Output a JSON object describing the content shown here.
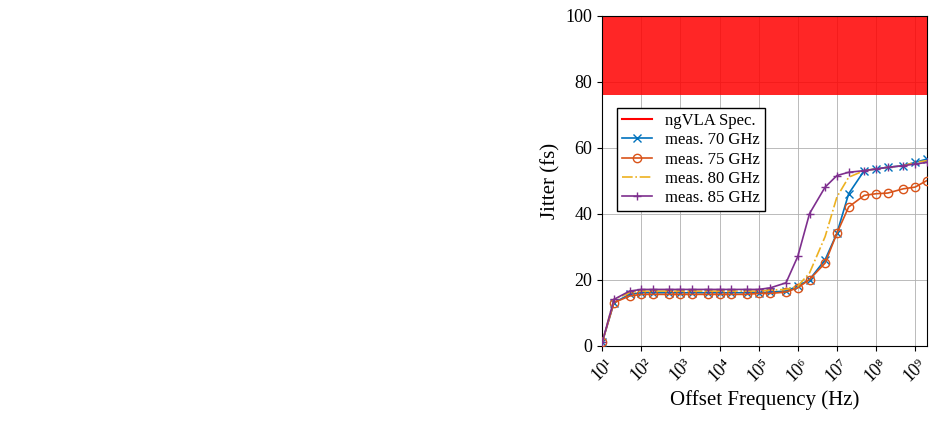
{
  "chart_data": {
    "type": "line",
    "x_label": "Offset Frequency (Hz)",
    "y_label": "Jitter (fs)",
    "log": "x",
    "grid": true,
    "legend": "upper left",
    "x": [
      10,
      20,
      50,
      100,
      200,
      500,
      1000,
      2000,
      5000,
      10000,
      20000,
      50000,
      100000,
      200000,
      500000,
      1000000,
      2000000,
      5000000,
      10000000,
      20000000,
      50000000,
      100000000,
      200000000,
      500000000,
      1000000000,
      2000000000
    ],
    "xlim": [
      10,
      2000000000
    ],
    "xticks": [
      {
        "value": 10,
        "label": "10¹"
      },
      {
        "value": 100,
        "label": "10²"
      },
      {
        "value": 1000,
        "label": "10³"
      },
      {
        "value": 10000,
        "label": "10⁴"
      },
      {
        "value": 100000,
        "label": "10⁵"
      },
      {
        "value": 1000000,
        "label": "10⁶"
      },
      {
        "value": 10000000,
        "label": "10⁷"
      },
      {
        "value": 100000000,
        "label": "10⁸"
      },
      {
        "value": 1000000000,
        "label": "10⁹"
      }
    ],
    "ylim": [
      0,
      100
    ],
    "yticks": [
      0,
      20,
      40,
      60,
      80,
      100
    ],
    "spec": {
      "name": "ngVLA Spec.",
      "color": "#ff0000",
      "y_range": [
        76,
        100
      ]
    },
    "series": [
      {
        "name": "meas. 70 GHz",
        "color": "#0072bd",
        "marker": "x",
        "line_style": "solid",
        "values": [
          1,
          13,
          15.5,
          16,
          16,
          16,
          16,
          16,
          16,
          16,
          16,
          16,
          16,
          16.2,
          16.5,
          18,
          20,
          26,
          34,
          46,
          53,
          53.5,
          54,
          54.5,
          55.5,
          56.5
        ]
      },
      {
        "name": "meas. 75 GHz",
        "color": "#d95319",
        "marker": "o",
        "line_style": "solid",
        "values": [
          1,
          13,
          15,
          15.5,
          15.5,
          15.5,
          15.5,
          15.5,
          15.5,
          15.5,
          15.5,
          15.5,
          15.8,
          15.8,
          16.2,
          17.5,
          20,
          25,
          34,
          42,
          45.5,
          46,
          46.2,
          47.5,
          48,
          50
        ]
      },
      {
        "name": "meas. 80 GHz",
        "color": "#edb120",
        "marker": "none",
        "line_style": "dashdot",
        "values": [
          1,
          14,
          16,
          16.5,
          16.5,
          16.5,
          16.5,
          16.5,
          16.5,
          16.5,
          16.5,
          16.5,
          16.5,
          16.8,
          17,
          18,
          22,
          33,
          45,
          51,
          53,
          53.5,
          54,
          54.5,
          55.5,
          56
        ]
      },
      {
        "name": "meas. 85 GHz",
        "color": "#7e2f8e",
        "marker": "+",
        "line_style": "solid",
        "values": [
          1,
          14,
          16.5,
          17,
          17,
          17,
          17,
          17,
          17,
          17,
          17,
          17,
          17,
          17.5,
          19,
          27,
          40,
          48,
          51.5,
          52.5,
          53,
          53.5,
          54,
          54.5,
          55,
          55.5
        ]
      }
    ]
  }
}
